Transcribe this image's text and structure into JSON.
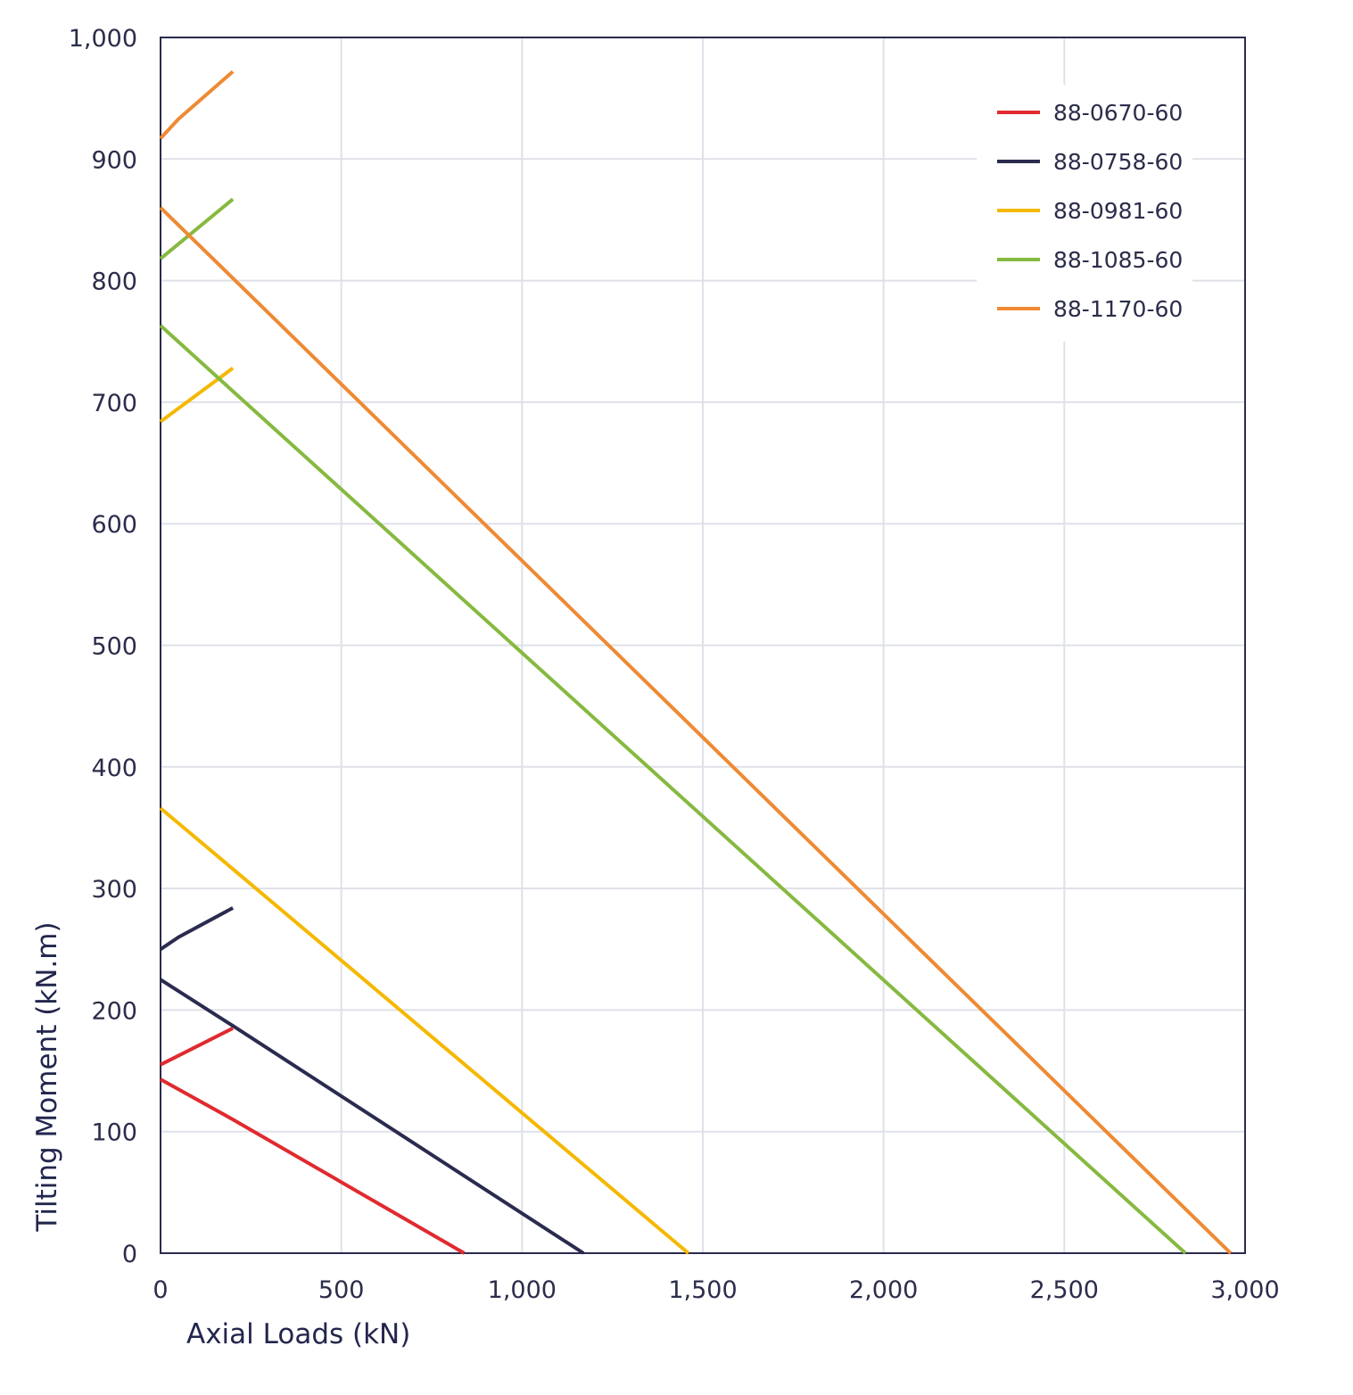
{
  "chart_data": {
    "type": "line",
    "title": "",
    "xlabel": "Axial Loads (kN)",
    "ylabel": "Tilting Moment (kN.m)",
    "xlim": [
      0,
      3000
    ],
    "ylim": [
      0,
      1000
    ],
    "x_ticks": [
      0,
      500,
      1000,
      1500,
      2000,
      2500,
      3000
    ],
    "x_tick_labels": [
      "0",
      "500",
      "1,000",
      "1,500",
      "2,000",
      "2,500",
      "3,000"
    ],
    "y_ticks": [
      0,
      100,
      200,
      300,
      400,
      500,
      600,
      700,
      800,
      900,
      1000
    ],
    "y_tick_labels": [
      "0",
      "100",
      "200",
      "300",
      "400",
      "500",
      "600",
      "700",
      "800",
      "900",
      "1,000"
    ],
    "grid": true,
    "legend_position": "top-right",
    "series": [
      {
        "name": "88-0670-60",
        "color": "#e02a2f",
        "segments": [
          [
            [
              0,
              155
            ],
            [
              200,
              185
            ]
          ],
          [
            [
              0,
              143
            ],
            [
              200,
              110
            ],
            [
              840,
              0
            ]
          ]
        ]
      },
      {
        "name": "88-0758-60",
        "color": "#2a2b4f",
        "segments": [
          [
            [
              0,
              250
            ],
            [
              50,
              260
            ],
            [
              200,
              284
            ]
          ],
          [
            [
              0,
              225
            ],
            [
              200,
              187
            ],
            [
              1170,
              0
            ]
          ]
        ]
      },
      {
        "name": "88-0981-60",
        "color": "#f5b800",
        "segments": [
          [
            [
              0,
              684
            ],
            [
              200,
              728
            ]
          ],
          [
            [
              0,
              366
            ],
            [
              200,
              316
            ],
            [
              1460,
              0
            ]
          ]
        ]
      },
      {
        "name": "88-1085-60",
        "color": "#86b940",
        "segments": [
          [
            [
              0,
              818
            ],
            [
              200,
              867
            ]
          ],
          [
            [
              0,
              763
            ],
            [
              200,
              709
            ],
            [
              2835,
              0
            ]
          ]
        ]
      },
      {
        "name": "88-1170-60",
        "color": "#ee8a34",
        "segments": [
          [
            [
              0,
              917
            ],
            [
              50,
              933
            ],
            [
              200,
              972
            ]
          ],
          [
            [
              0,
              860
            ],
            [
              200,
              802
            ],
            [
              2960,
              0
            ]
          ]
        ]
      }
    ]
  }
}
